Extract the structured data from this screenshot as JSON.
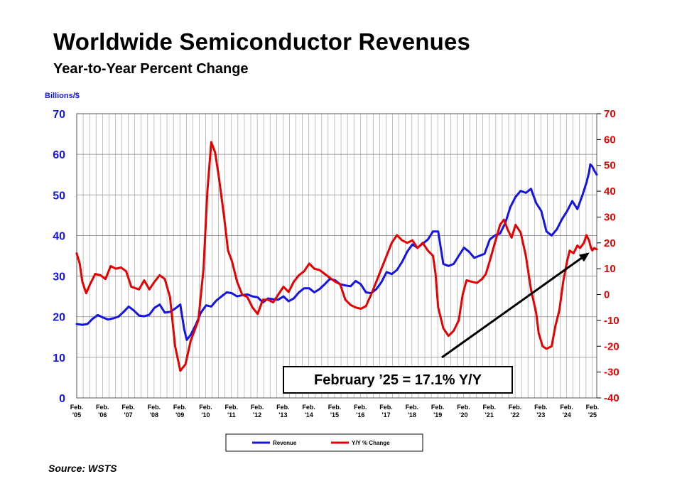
{
  "header": {
    "title": "Worldwide Semiconductor Revenues",
    "subtitle": "Year-to-Year Percent Change"
  },
  "footer": {
    "source": "Source: WSTS"
  },
  "colors": {
    "revenue": "#1414e6",
    "yoy": "#e60000",
    "grid": "#999999"
  },
  "chart_data": {
    "type": "line",
    "title": "Worldwide Semiconductor Revenues",
    "subtitle": "Year-to-Year Percent Change",
    "ylabel_left": "Billions/$",
    "ylim_left": [
      0,
      70
    ],
    "yticks_left": [
      0,
      10,
      20,
      30,
      40,
      50,
      60,
      70
    ],
    "ylim_right": [
      -40,
      70
    ],
    "yticks_right": [
      -40,
      -30,
      -20,
      -10,
      0,
      10,
      20,
      30,
      40,
      50,
      60,
      70
    ],
    "xlim": [
      2005.083,
      2025.25
    ],
    "x_ticks": [
      {
        "line1": "Feb.",
        "line2": "'05",
        "x": 2005.083
      },
      {
        "line1": "Feb.",
        "line2": "'06",
        "x": 2006.083
      },
      {
        "line1": "Feb.",
        "line2": "'07",
        "x": 2007.083
      },
      {
        "line1": "Feb.",
        "line2": "'08",
        "x": 2008.083
      },
      {
        "line1": "Feb.",
        "line2": "'09",
        "x": 2009.083
      },
      {
        "line1": "Feb.",
        "line2": "'10",
        "x": 2010.083
      },
      {
        "line1": "Feb.",
        "line2": "'11",
        "x": 2011.083
      },
      {
        "line1": "Feb.",
        "line2": "'12",
        "x": 2012.083
      },
      {
        "line1": "Feb.",
        "line2": "'13",
        "x": 2013.083
      },
      {
        "line1": "Feb.",
        "line2": "'14",
        "x": 2014.083
      },
      {
        "line1": "Feb.",
        "line2": "'15",
        "x": 2015.083
      },
      {
        "line1": "Feb.",
        "line2": "'16",
        "x": 2016.083
      },
      {
        "line1": "Feb.",
        "line2": "'17",
        "x": 2017.083
      },
      {
        "line1": "Feb.",
        "line2": "'18",
        "x": 2018.083
      },
      {
        "line1": "Feb.",
        "line2": "'19",
        "x": 2019.083
      },
      {
        "line1": "Feb.",
        "line2": "'20",
        "x": 2020.083
      },
      {
        "line1": "Feb.",
        "line2": "'21",
        "x": 2021.083
      },
      {
        "line1": "Feb.",
        "line2": "'22",
        "x": 2022.083
      },
      {
        "line1": "Feb.",
        "line2": "'23",
        "x": 2023.083
      },
      {
        "line1": "Feb.",
        "line2": "'24",
        "x": 2024.083
      },
      {
        "line1": "Feb.",
        "line2": "'25",
        "x": 2025.083
      }
    ],
    "grid": true,
    "legend_position": "bottom-center",
    "annotation": {
      "text": "February ’25 = 17.1% Y/Y",
      "x": 2025.08,
      "y": 17.1
    },
    "series": [
      {
        "name": "Revenue",
        "axis": "left",
        "color": "#1414e6",
        "points": [
          [
            2005.08,
            18.2
          ],
          [
            2005.3,
            18.0
          ],
          [
            2005.5,
            18.2
          ],
          [
            2005.7,
            19.5
          ],
          [
            2005.9,
            20.4
          ],
          [
            2006.1,
            19.8
          ],
          [
            2006.3,
            19.3
          ],
          [
            2006.5,
            19.6
          ],
          [
            2006.7,
            20.0
          ],
          [
            2006.9,
            21.2
          ],
          [
            2007.1,
            22.5
          ],
          [
            2007.3,
            21.5
          ],
          [
            2007.5,
            20.3
          ],
          [
            2007.7,
            20.1
          ],
          [
            2007.9,
            20.5
          ],
          [
            2008.1,
            22.2
          ],
          [
            2008.3,
            23.0
          ],
          [
            2008.5,
            21.0
          ],
          [
            2008.7,
            21.2
          ],
          [
            2008.9,
            22.0
          ],
          [
            2009.0,
            22.5
          ],
          [
            2009.1,
            23.0
          ],
          [
            2009.25,
            17.0
          ],
          [
            2009.35,
            14.3
          ],
          [
            2009.5,
            15.5
          ],
          [
            2009.7,
            18.0
          ],
          [
            2009.9,
            21.0
          ],
          [
            2010.1,
            22.8
          ],
          [
            2010.3,
            22.5
          ],
          [
            2010.5,
            24.0
          ],
          [
            2010.7,
            25.0
          ],
          [
            2010.9,
            26.0
          ],
          [
            2011.1,
            25.8
          ],
          [
            2011.3,
            25.0
          ],
          [
            2011.5,
            25.3
          ],
          [
            2011.7,
            25.5
          ],
          [
            2011.9,
            25.0
          ],
          [
            2012.1,
            24.8
          ],
          [
            2012.3,
            23.5
          ],
          [
            2012.5,
            24.5
          ],
          [
            2012.7,
            24.3
          ],
          [
            2012.9,
            24.2
          ],
          [
            2013.1,
            25.0
          ],
          [
            2013.3,
            23.8
          ],
          [
            2013.5,
            24.5
          ],
          [
            2013.7,
            26.0
          ],
          [
            2013.9,
            27.0
          ],
          [
            2014.1,
            27.0
          ],
          [
            2014.3,
            26.0
          ],
          [
            2014.5,
            26.8
          ],
          [
            2014.7,
            28.0
          ],
          [
            2014.9,
            29.3
          ],
          [
            2015.1,
            29.0
          ],
          [
            2015.3,
            28.0
          ],
          [
            2015.5,
            27.7
          ],
          [
            2015.7,
            27.5
          ],
          [
            2015.9,
            28.8
          ],
          [
            2016.1,
            28.0
          ],
          [
            2016.3,
            26.0
          ],
          [
            2016.5,
            25.8
          ],
          [
            2016.7,
            26.8
          ],
          [
            2016.9,
            28.5
          ],
          [
            2017.1,
            31.0
          ],
          [
            2017.3,
            30.5
          ],
          [
            2017.5,
            31.5
          ],
          [
            2017.7,
            33.5
          ],
          [
            2017.9,
            36.0
          ],
          [
            2018.1,
            37.8
          ],
          [
            2018.3,
            37.0
          ],
          [
            2018.5,
            38.0
          ],
          [
            2018.7,
            39.0
          ],
          [
            2018.9,
            41.0
          ],
          [
            2019.1,
            41.0
          ],
          [
            2019.3,
            33.0
          ],
          [
            2019.5,
            32.5
          ],
          [
            2019.7,
            33.0
          ],
          [
            2019.9,
            35.0
          ],
          [
            2020.1,
            37.0
          ],
          [
            2020.3,
            36.0
          ],
          [
            2020.5,
            34.5
          ],
          [
            2020.7,
            35.0
          ],
          [
            2020.9,
            35.5
          ],
          [
            2021.1,
            39.0
          ],
          [
            2021.3,
            40.0
          ],
          [
            2021.5,
            40.5
          ],
          [
            2021.7,
            43.0
          ],
          [
            2021.9,
            47.0
          ],
          [
            2022.1,
            49.5
          ],
          [
            2022.3,
            51.0
          ],
          [
            2022.5,
            50.5
          ],
          [
            2022.7,
            51.5
          ],
          [
            2022.9,
            48.0
          ],
          [
            2023.1,
            46.0
          ],
          [
            2023.3,
            41.0
          ],
          [
            2023.5,
            40.0
          ],
          [
            2023.7,
            41.5
          ],
          [
            2023.9,
            44.0
          ],
          [
            2024.1,
            46.0
          ],
          [
            2024.3,
            48.5
          ],
          [
            2024.5,
            46.5
          ],
          [
            2024.7,
            50.0
          ],
          [
            2024.85,
            53.0
          ],
          [
            2024.95,
            55.5
          ],
          [
            2025.0,
            57.5
          ],
          [
            2025.08,
            57.0
          ],
          [
            2025.15,
            56.0
          ],
          [
            2025.25,
            55.0
          ]
        ]
      },
      {
        "name": "Y/Y % Change",
        "axis": "right",
        "color": "#e60000",
        "points": [
          [
            2005.08,
            16.0
          ],
          [
            2005.2,
            12.0
          ],
          [
            2005.3,
            5.0
          ],
          [
            2005.45,
            0.5
          ],
          [
            2005.6,
            4.0
          ],
          [
            2005.8,
            8.0
          ],
          [
            2006.0,
            7.5
          ],
          [
            2006.2,
            6.0
          ],
          [
            2006.4,
            11.0
          ],
          [
            2006.6,
            10.0
          ],
          [
            2006.8,
            10.5
          ],
          [
            2007.0,
            9.0
          ],
          [
            2007.2,
            3.0
          ],
          [
            2007.5,
            2.0
          ],
          [
            2007.7,
            5.5
          ],
          [
            2007.9,
            2.0
          ],
          [
            2008.1,
            5.0
          ],
          [
            2008.3,
            7.5
          ],
          [
            2008.5,
            6.0
          ],
          [
            2008.7,
            -1.0
          ],
          [
            2008.9,
            -20.0
          ],
          [
            2009.1,
            -29.5
          ],
          [
            2009.3,
            -27.0
          ],
          [
            2009.5,
            -18.0
          ],
          [
            2009.8,
            -10.0
          ],
          [
            2010.0,
            10.0
          ],
          [
            2010.15,
            40.0
          ],
          [
            2010.3,
            59.0
          ],
          [
            2010.45,
            55.0
          ],
          [
            2010.6,
            45.0
          ],
          [
            2010.8,
            30.0
          ],
          [
            2010.95,
            17.0
          ],
          [
            2011.1,
            13.0
          ],
          [
            2011.3,
            5.0
          ],
          [
            2011.5,
            0.0
          ],
          [
            2011.7,
            -1.0
          ],
          [
            2011.9,
            -5.0
          ],
          [
            2012.1,
            -7.5
          ],
          [
            2012.3,
            -2.0
          ],
          [
            2012.5,
            -2.0
          ],
          [
            2012.7,
            -3.0
          ],
          [
            2012.9,
            0.0
          ],
          [
            2013.1,
            3.0
          ],
          [
            2013.3,
            1.0
          ],
          [
            2013.5,
            5.0
          ],
          [
            2013.7,
            7.5
          ],
          [
            2013.9,
            9.0
          ],
          [
            2014.1,
            12.0
          ],
          [
            2014.3,
            10.0
          ],
          [
            2014.5,
            9.5
          ],
          [
            2014.7,
            8.0
          ],
          [
            2014.9,
            6.5
          ],
          [
            2015.1,
            5.0
          ],
          [
            2015.3,
            4.0
          ],
          [
            2015.5,
            -2.0
          ],
          [
            2015.7,
            -4.0
          ],
          [
            2015.9,
            -5.0
          ],
          [
            2016.1,
            -5.5
          ],
          [
            2016.3,
            -4.5
          ],
          [
            2016.5,
            0.0
          ],
          [
            2016.7,
            5.0
          ],
          [
            2016.9,
            10.0
          ],
          [
            2017.1,
            15.0
          ],
          [
            2017.3,
            20.0
          ],
          [
            2017.5,
            23.0
          ],
          [
            2017.7,
            21.0
          ],
          [
            2017.9,
            20.0
          ],
          [
            2018.1,
            21.0
          ],
          [
            2018.3,
            18.0
          ],
          [
            2018.5,
            20.0
          ],
          [
            2018.7,
            17.0
          ],
          [
            2018.9,
            15.0
          ],
          [
            2019.0,
            8.0
          ],
          [
            2019.1,
            -5.0
          ],
          [
            2019.3,
            -13.0
          ],
          [
            2019.5,
            -16.0
          ],
          [
            2019.7,
            -14.0
          ],
          [
            2019.9,
            -10.0
          ],
          [
            2020.05,
            0.0
          ],
          [
            2020.2,
            5.5
          ],
          [
            2020.4,
            5.0
          ],
          [
            2020.6,
            4.5
          ],
          [
            2020.8,
            6.0
          ],
          [
            2020.95,
            8.0
          ],
          [
            2021.1,
            13.0
          ],
          [
            2021.3,
            20.0
          ],
          [
            2021.5,
            27.0
          ],
          [
            2021.65,
            29.0
          ],
          [
            2021.8,
            25.0
          ],
          [
            2021.95,
            22.0
          ],
          [
            2022.1,
            27.0
          ],
          [
            2022.3,
            24.0
          ],
          [
            2022.5,
            15.0
          ],
          [
            2022.7,
            2.0
          ],
          [
            2022.9,
            -7.0
          ],
          [
            2023.0,
            -15.0
          ],
          [
            2023.15,
            -20.0
          ],
          [
            2023.3,
            -21.0
          ],
          [
            2023.5,
            -20.0
          ],
          [
            2023.65,
            -12.0
          ],
          [
            2023.8,
            -6.0
          ],
          [
            2023.95,
            5.0
          ],
          [
            2024.1,
            13.0
          ],
          [
            2024.2,
            17.0
          ],
          [
            2024.35,
            16.0
          ],
          [
            2024.5,
            19.0
          ],
          [
            2024.6,
            18.0
          ],
          [
            2024.75,
            20.0
          ],
          [
            2024.85,
            23.0
          ],
          [
            2024.95,
            21.0
          ],
          [
            2025.03,
            18.0
          ],
          [
            2025.08,
            17.1
          ],
          [
            2025.15,
            18.0
          ],
          [
            2025.25,
            17.5
          ]
        ]
      }
    ]
  }
}
